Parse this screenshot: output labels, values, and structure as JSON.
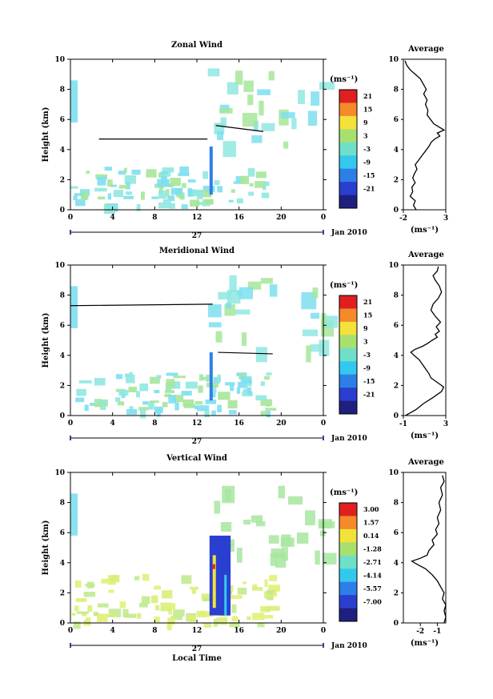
{
  "chart_data": [
    {
      "type": "heatmap",
      "title": "Zonal Wind",
      "ylabel": "Height (km)",
      "xlabel": "",
      "ylim": [
        0,
        10
      ],
      "x_ticks": [
        "0",
        "4",
        "8",
        "12",
        "16",
        "20",
        "0"
      ],
      "y_ticks": [
        "0",
        "2",
        "4",
        "6",
        "8",
        "10"
      ],
      "date_day": "27",
      "date_label": "Jan 2010",
      "colorbar": {
        "unit": "(ms⁻¹)",
        "ticks": [
          "21",
          "15",
          "9",
          "3",
          "-3",
          "-9",
          "-15",
          "-21"
        ]
      },
      "average": {
        "title": "Average",
        "xlabel": "(ms⁻¹)",
        "x_ticks": [
          "-2",
          "3"
        ],
        "xlim": [
          -2,
          3
        ],
        "ylim": [
          0,
          10
        ],
        "y_ticks": [
          "0",
          "2",
          "4",
          "6",
          "8",
          "10"
        ],
        "profile": [
          [
            -0.5,
            0.0
          ],
          [
            -0.8,
            0.3
          ],
          [
            -0.6,
            0.6
          ],
          [
            -1.2,
            0.9
          ],
          [
            -0.9,
            1.2
          ],
          [
            -1.0,
            1.5
          ],
          [
            -0.6,
            1.8
          ],
          [
            -0.9,
            2.1
          ],
          [
            -0.7,
            2.4
          ],
          [
            -0.4,
            2.7
          ],
          [
            -0.6,
            3.0
          ],
          [
            -0.2,
            3.3
          ],
          [
            0.2,
            3.6
          ],
          [
            0.6,
            3.9
          ],
          [
            1.0,
            4.2
          ],
          [
            1.3,
            4.5
          ],
          [
            1.7,
            4.7
          ],
          [
            2.3,
            4.9
          ],
          [
            2.0,
            5.1
          ],
          [
            2.8,
            5.3
          ],
          [
            2.2,
            5.5
          ],
          [
            1.6,
            5.7
          ],
          [
            1.2,
            6.0
          ],
          [
            0.8,
            6.3
          ],
          [
            0.9,
            6.6
          ],
          [
            0.6,
            7.0
          ],
          [
            0.8,
            7.3
          ],
          [
            0.4,
            7.7
          ],
          [
            0.7,
            8.0
          ],
          [
            0.3,
            8.4
          ],
          [
            0.0,
            8.7
          ],
          [
            -0.6,
            9.0
          ],
          [
            -1.2,
            9.3
          ],
          [
            -1.6,
            9.6
          ],
          [
            -1.8,
            9.9
          ]
        ]
      }
    },
    {
      "type": "heatmap",
      "title": "Meridional Wind",
      "ylabel": "Height (km)",
      "xlabel": "",
      "ylim": [
        0,
        10
      ],
      "x_ticks": [
        "0",
        "4",
        "8",
        "12",
        "16",
        "20",
        "0"
      ],
      "y_ticks": [
        "0",
        "2",
        "4",
        "6",
        "8",
        "10"
      ],
      "date_day": "27",
      "date_label": "Jan 2010",
      "colorbar": {
        "unit": "(ms⁻¹)",
        "ticks": [
          "21",
          "15",
          "9",
          "3",
          "-3",
          "-9",
          "-15",
          "-21"
        ]
      },
      "average": {
        "title": "Average",
        "xlabel": "(ms⁻¹)",
        "x_ticks": [
          "-1",
          "3"
        ],
        "xlim": [
          -1,
          3
        ],
        "ylim": [
          0,
          10
        ],
        "y_ticks": [
          "0",
          "2",
          "4",
          "6",
          "8",
          "10"
        ],
        "profile": [
          [
            -0.8,
            0.0
          ],
          [
            0.2,
            0.4
          ],
          [
            0.9,
            0.8
          ],
          [
            1.8,
            1.2
          ],
          [
            2.6,
            1.6
          ],
          [
            2.8,
            1.9
          ],
          [
            2.2,
            2.2
          ],
          [
            1.6,
            2.5
          ],
          [
            1.4,
            2.8
          ],
          [
            1.1,
            3.1
          ],
          [
            0.8,
            3.4
          ],
          [
            0.5,
            3.7
          ],
          [
            0.0,
            4.0
          ],
          [
            -0.3,
            4.2
          ],
          [
            0.1,
            4.4
          ],
          [
            0.8,
            4.6
          ],
          [
            1.3,
            4.8
          ],
          [
            1.7,
            5.0
          ],
          [
            2.2,
            5.2
          ],
          [
            2.0,
            5.4
          ],
          [
            2.4,
            5.6
          ],
          [
            2.1,
            5.9
          ],
          [
            2.5,
            6.2
          ],
          [
            2.0,
            6.6
          ],
          [
            1.6,
            7.0
          ],
          [
            1.8,
            7.4
          ],
          [
            2.3,
            7.8
          ],
          [
            2.6,
            8.2
          ],
          [
            2.4,
            8.6
          ],
          [
            2.0,
            9.0
          ],
          [
            1.8,
            9.3
          ],
          [
            2.2,
            9.6
          ],
          [
            2.3,
            9.9
          ]
        ]
      }
    },
    {
      "type": "heatmap",
      "title": "Vertical Wind",
      "ylabel": "Height (km)",
      "xlabel": "Local Time",
      "ylim": [
        0,
        10
      ],
      "x_ticks": [
        "0",
        "4",
        "8",
        "12",
        "16",
        "20",
        "0"
      ],
      "y_ticks": [
        "0",
        "2",
        "4",
        "6",
        "8",
        "10"
      ],
      "date_day": "27",
      "date_label": "Jan 2010",
      "colorbar": {
        "unit": "(ms⁻¹)",
        "ticks": [
          "3.00",
          "1.57",
          "0.14",
          "-1.28",
          "-2.71",
          "-4.14",
          "-5.57",
          "-7.00"
        ]
      },
      "average": {
        "title": "Average",
        "xlabel": "(ms⁻¹)",
        "x_ticks": [
          "-2",
          "-1"
        ],
        "xlim": [
          -3,
          -0.5
        ],
        "ylim": [
          0,
          10
        ],
        "y_ticks": [
          "0",
          "2",
          "4",
          "6",
          "8",
          "10"
        ],
        "profile": [
          [
            -0.6,
            0.0
          ],
          [
            -0.5,
            0.4
          ],
          [
            -0.6,
            0.8
          ],
          [
            -0.5,
            1.2
          ],
          [
            -0.7,
            1.6
          ],
          [
            -0.6,
            2.0
          ],
          [
            -0.8,
            2.4
          ],
          [
            -1.0,
            2.8
          ],
          [
            -1.3,
            3.2
          ],
          [
            -1.7,
            3.6
          ],
          [
            -2.2,
            3.9
          ],
          [
            -2.5,
            4.1
          ],
          [
            -2.0,
            4.3
          ],
          [
            -1.6,
            4.5
          ],
          [
            -1.5,
            4.8
          ],
          [
            -1.2,
            5.2
          ],
          [
            -1.3,
            5.5
          ],
          [
            -1.0,
            5.9
          ],
          [
            -1.1,
            6.2
          ],
          [
            -0.9,
            6.6
          ],
          [
            -1.0,
            7.0
          ],
          [
            -0.8,
            7.5
          ],
          [
            -0.9,
            8.0
          ],
          [
            -0.7,
            8.5
          ],
          [
            -0.8,
            9.0
          ],
          [
            -0.6,
            9.4
          ],
          [
            -0.7,
            9.8
          ]
        ]
      }
    }
  ]
}
